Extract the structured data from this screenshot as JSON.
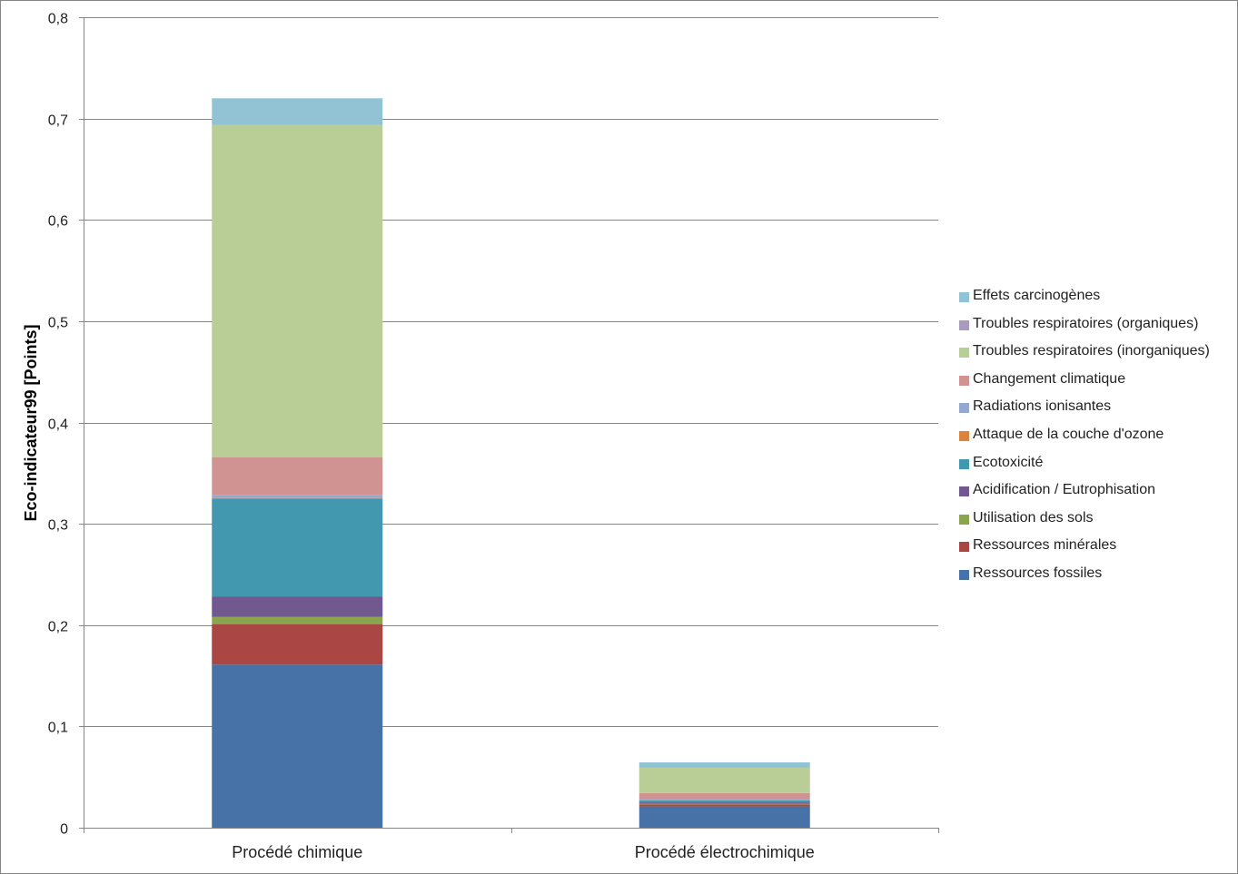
{
  "chart_data": {
    "type": "bar",
    "stacked": true,
    "ylabel": "Eco-indicateur99 [Points]",
    "ylim": [
      0,
      0.8
    ],
    "yticks": [
      "0",
      "0,1",
      "0,2",
      "0,3",
      "0,4",
      "0,5",
      "0,6",
      "0,7",
      "0,8"
    ],
    "ytick_values": [
      0,
      0.1,
      0.2,
      0.3,
      0.4,
      0.5,
      0.6,
      0.7,
      0.8
    ],
    "grid": true,
    "legend_position": "right",
    "categories": [
      "Procédé chimique",
      "Procédé électrochimique"
    ],
    "series": [
      {
        "name": "Ressources fossiles",
        "color": "#4672A8",
        "values": [
          0.161,
          0.021
        ]
      },
      {
        "name": "Ressources minérales",
        "color": "#AA4644",
        "values": [
          0.04,
          0.002
        ]
      },
      {
        "name": "Utilisation des sols",
        "color": "#89A64E",
        "values": [
          0.007,
          0.0005
        ]
      },
      {
        "name": "Acidification / Eutrophisation",
        "color": "#71588F",
        "values": [
          0.02,
          0.0015
        ]
      },
      {
        "name": "Ecotoxicité",
        "color": "#4198AF",
        "values": [
          0.097,
          0.002
        ]
      },
      {
        "name": "Attaque de la couche d'ozone",
        "color": "#DB843D",
        "values": [
          0.0005,
          0.0002
        ]
      },
      {
        "name": "Radiations ionisantes",
        "color": "#93A9CF",
        "values": [
          0.003,
          0.001
        ]
      },
      {
        "name": "Changement climatique",
        "color": "#D19392",
        "values": [
          0.037,
          0.006
        ]
      },
      {
        "name": "Troubles respiratoires (inorganiques)",
        "color": "#B9CD96",
        "values": [
          0.328,
          0.025
        ]
      },
      {
        "name": "Troubles respiratoires (organiques)",
        "color": "#A99BBD",
        "values": [
          0.0005,
          0.0003
        ]
      },
      {
        "name": "Effets carcinogènes",
        "color": "#91C3D5",
        "values": [
          0.026,
          0.005
        ]
      }
    ]
  }
}
